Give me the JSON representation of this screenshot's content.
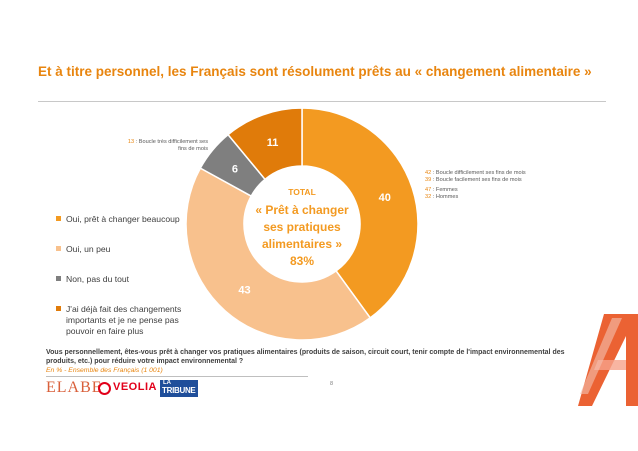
{
  "title": "Et à titre personnel, les Français sont résolument prêts au « changement alimentaire »",
  "chart_data": {
    "type": "pie",
    "variant": "donut",
    "categories": [
      "Oui, prêt à changer beaucoup",
      "Oui, un peu",
      "Non, pas du tout",
      "J'ai déjà fait des changements importants et je ne pense pas pouvoir en faire plus"
    ],
    "values": [
      40,
      43,
      6,
      11
    ],
    "colors": [
      "#f39a21",
      "#f8c18d",
      "#7f7f7f",
      "#e07b0a"
    ],
    "legend_position": "left",
    "center": {
      "line1": "TOTAL",
      "line2": "« Prêt à changer",
      "line3": "ses pratiques",
      "line4": "alimentaires »",
      "line5": "83%"
    }
  },
  "legend": [
    {
      "label": "Oui, prêt à changer beaucoup"
    },
    {
      "label": "Oui, un peu"
    },
    {
      "label": "Non, pas du tout"
    },
    {
      "label": "J'ai déjà fait des changements importants et je ne pense pas pouvoir en faire plus"
    }
  ],
  "annotation_left": {
    "num": "13",
    "text": " : Boucle très difficilement ses fins de mois"
  },
  "annotation_right": [
    {
      "num": "42",
      "text": " : Boucle difficilement ses fins de mois"
    },
    {
      "num": "39",
      "text": " : Boucle facilement ses fins de mois"
    },
    {
      "num": "47",
      "text": " : Femmes"
    },
    {
      "num": "32",
      "text": " : Hommes"
    }
  ],
  "question": "Vous personnellement, êtes-vous prêt à changer vos pratiques alimentaires (produits de saison, circuit court, tenir compte de l'impact environnemental des produits, etc.) pour réduire votre impact environnemental ?",
  "source": "En % - Ensemble des Français (1 001)",
  "page_number": "8",
  "logos": {
    "elabe": "ELABE",
    "veolia": "VEOLIA",
    "tribune_top": "LA",
    "tribune_main": "TRIBUNE"
  }
}
